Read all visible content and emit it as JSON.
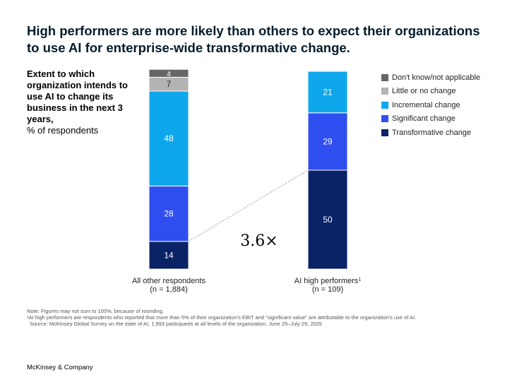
{
  "title": "High performers are more likely than others to expect their organizations to use AI for enterprise-wide transformative change.",
  "subtitle": "Extent to which organization intends to use AI to change its business in the next 3 years,",
  "unit_label": "% of respondents",
  "multiplier_label": "3.6×",
  "notes": {
    "note1": "Note: Figures may not sum to 100%, because of rounding.",
    "note2": "¹AI high performers are respondents who reported that more than 5% of their organization's EBIT and \"significant value\" are attributable to the organization's use of AI.",
    "source": "Source: McKinsey Global Survey on the state of AI, 1,993 participants at all levels of the organization, June 25–July 29, 2025"
  },
  "brand": "McKinsey & Company",
  "chart_data": {
    "type": "bar",
    "stacked": true,
    "categories": [
      "All other respondents",
      "AI high performers"
    ],
    "category_sublabels": [
      "(n = 1,884)",
      "(n = 109)"
    ],
    "category_superscripts": [
      "",
      "1"
    ],
    "series": [
      {
        "name": "Transformative change",
        "color": "#0a2266",
        "values": [
          14,
          50
        ]
      },
      {
        "name": "Significant change",
        "color": "#2f4ef0",
        "values": [
          28,
          29
        ]
      },
      {
        "name": "Incremental change",
        "color": "#0fa7ec",
        "values": [
          48,
          21
        ]
      },
      {
        "name": "Little or no change",
        "color": "#b3b3b3",
        "values": [
          7,
          null
        ]
      },
      {
        "name": "Don't know/not applicable",
        "color": "#666666",
        "values": [
          4,
          null
        ]
      }
    ],
    "legend_order": [
      "Don't know/not applicable",
      "Little or no change",
      "Incremental change",
      "Significant change",
      "Transformative change"
    ],
    "legend_position": "top-right",
    "grid": false
  }
}
